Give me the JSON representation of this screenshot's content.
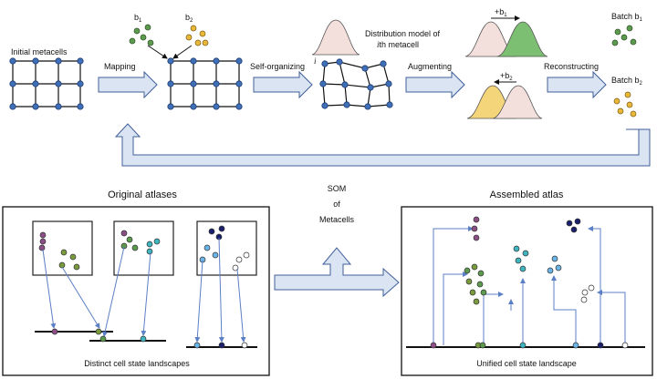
{
  "pipeline": {
    "initial_label": "Initial metacells",
    "mapping_label": "Mapping",
    "b1_label": "b",
    "b1_sub": "1",
    "b2_label": "b",
    "b2_sub": "2",
    "self_org_label": "Self-organizing",
    "i_label": "i",
    "dist_line1": "Distribution model of",
    "dist_line2_italic": "i",
    "dist_line2_rest": "th metacell",
    "augment_label": "Augmenting",
    "shift1_label": "+b",
    "shift1_sub": "1",
    "shift2_label": "+b",
    "shift2_sub": "2",
    "recon_label": "Reconstructing",
    "batch1_label": "Batch b",
    "batch1_sub": "1",
    "batch2_label": "Batch b",
    "batch2_sub": "2"
  },
  "atlas": {
    "original_title": "Original atlases",
    "som_line1": "SOM",
    "som_line2": "of",
    "som_line3": "Metacells",
    "assembled_title": "Assembled atlas",
    "distinct_caption": "Distinct cell state landscapes",
    "unified_caption": "Unified cell state landscape"
  },
  "colors": {
    "node": "#3f6fb7",
    "grid_line": "#111111",
    "arrow_fill": "#dbe4f3",
    "arrow_stroke": "#3f5f9a",
    "link": "#5b7fc4",
    "green_dot": "#5c9a4e",
    "olive_dot": "#7a9a3e",
    "yellow_dot": "#e8b83a",
    "purple_dot": "#8b4f86",
    "teal_dot": "#3fb6bf",
    "light_blue_dot": "#6bb5e6",
    "navy_dot": "#1a1f6b",
    "white_dot": "#ffffff",
    "hist_pink": "#f3e0dc",
    "hist_green": "#7dbf72",
    "hist_yellow": "#f5d57a"
  }
}
